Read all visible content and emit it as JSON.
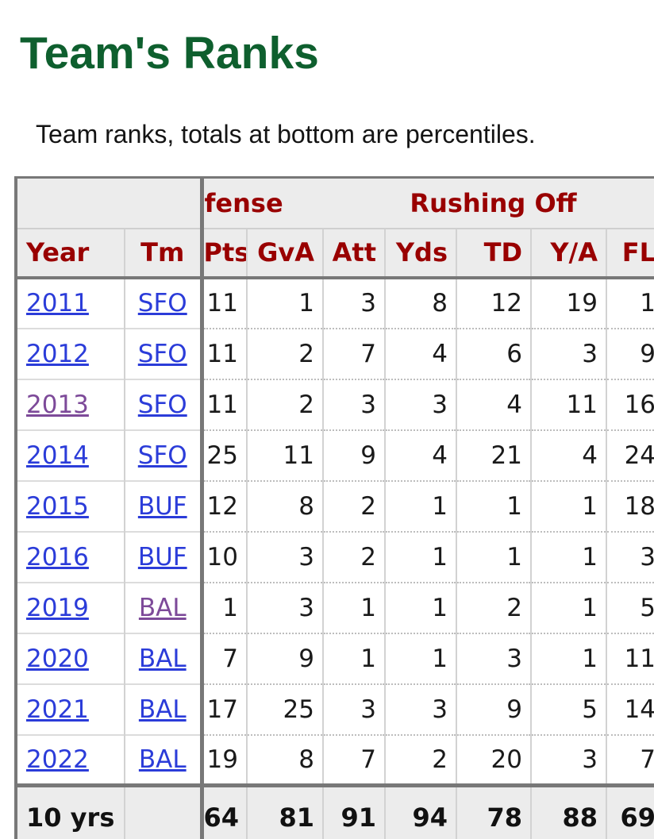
{
  "page": {
    "title": "Team's Ranks",
    "subtitle": "Team ranks, totals at bottom are percentiles."
  },
  "table": {
    "group_headers": [
      {
        "label": "",
        "span": 2
      },
      {
        "label": "fense",
        "span": 2
      },
      {
        "label": "Rushing Off",
        "span": 5
      }
    ],
    "columns": [
      "Year",
      "Tm",
      "Pts",
      "GvA",
      "Att",
      "Yds",
      "TD",
      "Y/A",
      "FL"
    ],
    "rows": [
      {
        "year": "2011",
        "team": "SFO",
        "year_visited": false,
        "team_visited": false,
        "values": [
          "11",
          "1",
          "3",
          "8",
          "12",
          "19",
          "1"
        ]
      },
      {
        "year": "2012",
        "team": "SFO",
        "year_visited": false,
        "team_visited": false,
        "values": [
          "11",
          "2",
          "7",
          "4",
          "6",
          "3",
          "9"
        ]
      },
      {
        "year": "2013",
        "team": "SFO",
        "year_visited": true,
        "team_visited": false,
        "values": [
          "11",
          "2",
          "3",
          "3",
          "4",
          "11",
          "16"
        ]
      },
      {
        "year": "2014",
        "team": "SFO",
        "year_visited": false,
        "team_visited": false,
        "values": [
          "25",
          "11",
          "9",
          "4",
          "21",
          "4",
          "24"
        ]
      },
      {
        "year": "2015",
        "team": "BUF",
        "year_visited": false,
        "team_visited": false,
        "values": [
          "12",
          "8",
          "2",
          "1",
          "1",
          "1",
          "18"
        ]
      },
      {
        "year": "2016",
        "team": "BUF",
        "year_visited": false,
        "team_visited": false,
        "values": [
          "10",
          "3",
          "2",
          "1",
          "1",
          "1",
          "3"
        ]
      },
      {
        "year": "2019",
        "team": "BAL",
        "year_visited": false,
        "team_visited": true,
        "values": [
          "1",
          "3",
          "1",
          "1",
          "2",
          "1",
          "5"
        ]
      },
      {
        "year": "2020",
        "team": "BAL",
        "year_visited": false,
        "team_visited": false,
        "values": [
          "7",
          "9",
          "1",
          "1",
          "3",
          "1",
          "11"
        ]
      },
      {
        "year": "2021",
        "team": "BAL",
        "year_visited": false,
        "team_visited": false,
        "values": [
          "17",
          "25",
          "3",
          "3",
          "9",
          "5",
          "14"
        ]
      },
      {
        "year": "2022",
        "team": "BAL",
        "year_visited": false,
        "team_visited": false,
        "values": [
          "19",
          "8",
          "7",
          "2",
          "20",
          "3",
          "7"
        ]
      }
    ],
    "totals": {
      "label": "10 yrs",
      "team": "",
      "values": [
        "64",
        "81",
        "91",
        "94",
        "78",
        "88",
        "69"
      ]
    }
  },
  "colors": {
    "title_green": "#0e5f2e",
    "header_maroon": "#990000",
    "link_blue": "#2b3cd9",
    "link_visited_purple": "#7d4a99",
    "header_bg": "#ececec",
    "border_dark": "#787878"
  }
}
